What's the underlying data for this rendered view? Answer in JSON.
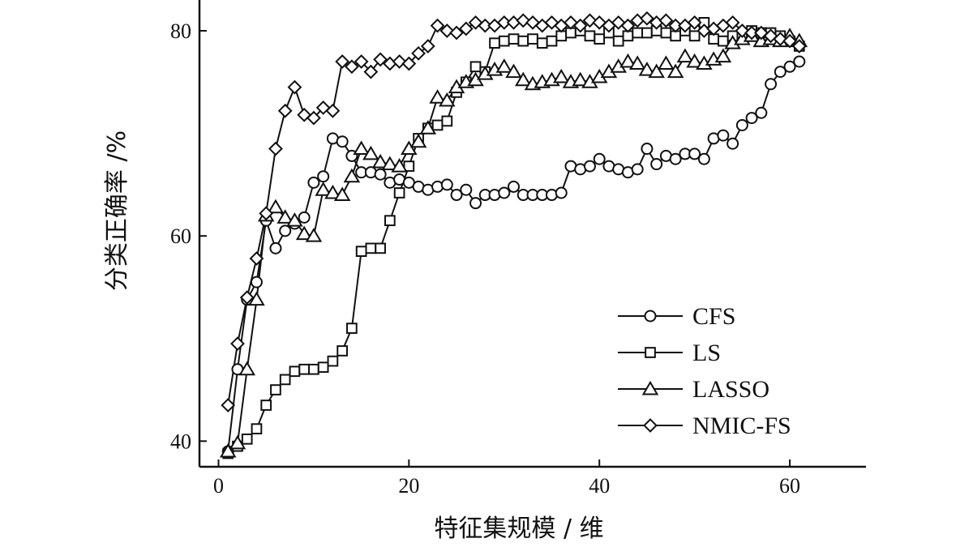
{
  "chart_data": {
    "type": "line",
    "xlabel": "特征集规模 / 维",
    "ylabel": "分类正确率 /%",
    "xlim": [
      -2,
      68
    ],
    "ylim": [
      37.5,
      83
    ],
    "x_ticks": [
      0,
      20,
      40,
      60
    ],
    "y_ticks": [
      40,
      60,
      80
    ],
    "x_tick_labels": [
      "0",
      "20",
      "40",
      "60"
    ],
    "y_tick_labels": [
      "40",
      "60",
      "80"
    ],
    "legend_position": "lower-right",
    "series": [
      {
        "name": "CFS",
        "marker": "circle",
        "x": [
          1,
          2,
          3,
          4,
          5,
          6,
          7,
          8,
          9,
          10,
          11,
          12,
          13,
          14,
          15,
          16,
          17,
          18,
          19,
          20,
          21,
          22,
          23,
          24,
          25,
          26,
          27,
          28,
          29,
          30,
          31,
          32,
          33,
          34,
          35,
          36,
          37,
          38,
          39,
          40,
          41,
          42,
          43,
          44,
          45,
          46,
          47,
          48,
          49,
          50,
          51,
          52,
          53,
          54,
          55,
          56,
          57,
          58,
          59,
          60,
          61
        ],
        "y": [
          39.0,
          47.0,
          53.8,
          55.5,
          61.5,
          58.8,
          60.5,
          61.2,
          61.8,
          65.2,
          65.8,
          69.5,
          69.2,
          67.8,
          66.2,
          66.2,
          66.0,
          65.2,
          65.5,
          65.2,
          64.8,
          64.5,
          64.8,
          65.0,
          64.0,
          64.5,
          63.2,
          64.0,
          64.0,
          64.2,
          64.8,
          64.0,
          64.0,
          64.0,
          64.0,
          64.2,
          66.8,
          66.5,
          66.8,
          67.5,
          66.8,
          66.5,
          66.2,
          66.5,
          68.5,
          67.0,
          67.8,
          67.5,
          68.0,
          68.0,
          67.5,
          69.5,
          69.8,
          69.0,
          70.8,
          71.5,
          72.0,
          74.8,
          76.0,
          76.5,
          77.0
        ]
      },
      {
        "name": "LS",
        "marker": "square",
        "x": [
          1,
          2,
          3,
          4,
          5,
          6,
          7,
          8,
          9,
          10,
          11,
          12,
          13,
          14,
          15,
          16,
          17,
          18,
          19,
          20,
          21,
          22,
          23,
          24,
          25,
          26,
          27,
          28,
          29,
          30,
          31,
          32,
          33,
          34,
          35,
          36,
          37,
          38,
          39,
          40,
          41,
          42,
          43,
          44,
          45,
          46,
          47,
          48,
          49,
          50,
          51,
          52,
          53,
          54,
          55,
          56,
          57,
          58,
          59,
          60,
          61
        ],
        "y": [
          38.8,
          39.5,
          40.2,
          41.2,
          43.5,
          45.0,
          46.0,
          46.8,
          47.0,
          47.0,
          47.2,
          47.8,
          48.8,
          51.0,
          58.5,
          58.8,
          58.8,
          61.5,
          64.2,
          66.8,
          69.5,
          70.5,
          70.8,
          71.2,
          74.0,
          75.0,
          76.5,
          76.0,
          78.8,
          79.0,
          79.2,
          79.0,
          79.2,
          78.8,
          79.0,
          79.5,
          79.8,
          80.0,
          79.5,
          79.2,
          79.8,
          79.0,
          79.5,
          79.8,
          79.8,
          80.0,
          79.8,
          79.5,
          80.0,
          79.5,
          80.8,
          79.2,
          79.0,
          79.5,
          79.5,
          80.0,
          79.8,
          79.8,
          79.5,
          79.0,
          78.5
        ]
      },
      {
        "name": "LASSO",
        "marker": "triangle",
        "x": [
          1,
          2,
          3,
          4,
          5,
          6,
          7,
          8,
          9,
          10,
          11,
          12,
          13,
          14,
          15,
          16,
          17,
          18,
          19,
          20,
          21,
          22,
          23,
          24,
          25,
          26,
          27,
          28,
          29,
          30,
          31,
          32,
          33,
          34,
          35,
          36,
          37,
          38,
          39,
          40,
          41,
          42,
          43,
          44,
          45,
          46,
          47,
          48,
          49,
          50,
          51,
          52,
          53,
          54,
          55,
          56,
          57,
          58,
          59,
          60,
          61
        ],
        "y": [
          39.0,
          39.8,
          47.0,
          53.8,
          62.0,
          62.8,
          61.8,
          61.5,
          60.2,
          60.0,
          64.5,
          64.2,
          64.0,
          65.8,
          68.5,
          68.0,
          67.2,
          67.0,
          66.8,
          68.5,
          69.2,
          70.5,
          73.5,
          73.2,
          74.5,
          75.0,
          75.2,
          75.8,
          76.2,
          76.5,
          76.0,
          75.2,
          74.8,
          75.0,
          75.2,
          75.5,
          75.0,
          75.2,
          75.0,
          75.5,
          76.0,
          76.5,
          77.0,
          76.8,
          76.2,
          76.0,
          76.8,
          76.0,
          77.5,
          77.0,
          76.8,
          77.2,
          77.5,
          78.8,
          79.2,
          79.5,
          79.0,
          79.2,
          79.0,
          79.5,
          79.0
        ]
      },
      {
        "name": "NMIC-FS",
        "marker": "diamond",
        "x": [
          1,
          2,
          3,
          4,
          5,
          6,
          7,
          8,
          9,
          10,
          11,
          12,
          13,
          14,
          15,
          16,
          17,
          18,
          19,
          20,
          21,
          22,
          23,
          24,
          25,
          26,
          27,
          28,
          29,
          30,
          31,
          32,
          33,
          34,
          35,
          36,
          37,
          38,
          39,
          40,
          41,
          42,
          43,
          44,
          45,
          46,
          47,
          48,
          49,
          50,
          51,
          52,
          53,
          54,
          55,
          56,
          57,
          58,
          59,
          60,
          61
        ],
        "y": [
          43.5,
          49.5,
          54.0,
          57.8,
          62.2,
          68.5,
          72.2,
          74.5,
          71.8,
          71.5,
          72.5,
          72.2,
          77.0,
          76.5,
          77.0,
          76.0,
          77.2,
          76.8,
          77.0,
          76.8,
          77.8,
          78.5,
          80.5,
          80.0,
          79.8,
          80.2,
          80.8,
          80.5,
          80.5,
          80.8,
          80.8,
          81.0,
          80.8,
          80.5,
          80.8,
          80.5,
          80.8,
          80.5,
          81.0,
          80.8,
          80.5,
          80.8,
          80.5,
          81.0,
          81.2,
          80.8,
          81.0,
          80.5,
          80.5,
          80.8,
          80.0,
          80.2,
          80.5,
          80.8,
          80.0,
          79.8,
          79.8,
          79.5,
          79.2,
          79.0,
          78.5
        ]
      }
    ]
  }
}
